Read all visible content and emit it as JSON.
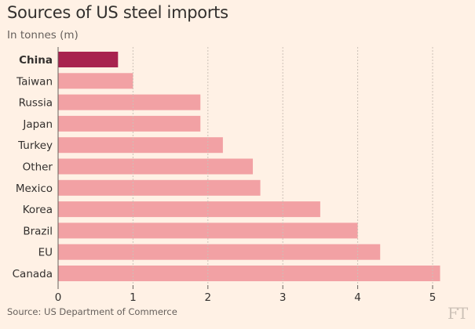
{
  "header": {
    "title": "Sources of US steel imports",
    "subtitle": "In tonnes (m)"
  },
  "footer": {
    "source": "Source: US Department of Commerce",
    "logo": "FT"
  },
  "colors": {
    "background": "#fff1e5",
    "bar": "#f2a1a4",
    "highlight_bar": "#a8234f",
    "gridline": "#ccc1b7",
    "text": "#33302e"
  },
  "chart_data": {
    "type": "bar",
    "orientation": "horizontal",
    "categories": [
      "China",
      "Taiwan",
      "Russia",
      "Japan",
      "Turkey",
      "Other",
      "Mexico",
      "Korea",
      "Brazil",
      "EU",
      "Canada"
    ],
    "values": [
      0.8,
      1.0,
      1.9,
      1.9,
      2.2,
      2.6,
      2.7,
      3.5,
      4.0,
      4.3,
      5.1
    ],
    "highlight": "China",
    "xlim": [
      0,
      5.3
    ],
    "xticks": [
      0,
      1,
      2,
      3,
      4,
      5
    ],
    "grid": "vertical dotted"
  }
}
